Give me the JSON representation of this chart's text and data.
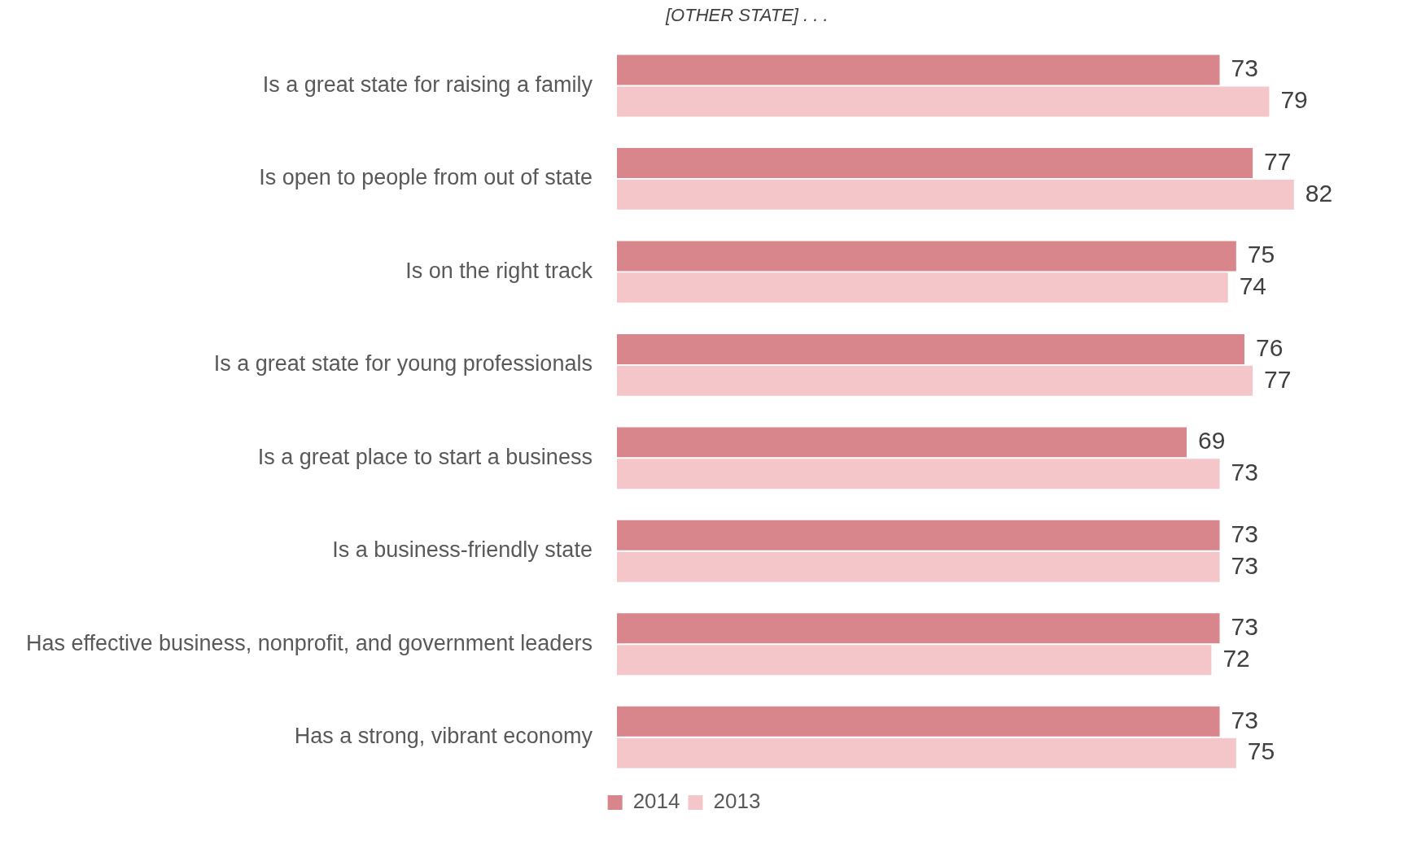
{
  "chart_data": {
    "type": "bar",
    "orientation": "horizontal",
    "subtitle": "[OTHER STATE] . . .",
    "categories": [
      "Is a great state for raising a family",
      "Is open to people from out of state",
      "Is on the right track",
      "Is a great state for young professionals",
      "Is a great place to start a business",
      "Is a business-friendly state",
      "Has effective business, nonprofit, and government leaders",
      "Has a strong, vibrant economy"
    ],
    "series": [
      {
        "name": "2014",
        "color": "#d9858c",
        "values": [
          73,
          77,
          75,
          76,
          69,
          73,
          73,
          73
        ]
      },
      {
        "name": "2013",
        "color": "#f4c6ca",
        "values": [
          79,
          82,
          74,
          77,
          73,
          73,
          72,
          75
        ]
      }
    ],
    "data_labels": true,
    "legend": "bottom",
    "tick_labels": "y"
  }
}
